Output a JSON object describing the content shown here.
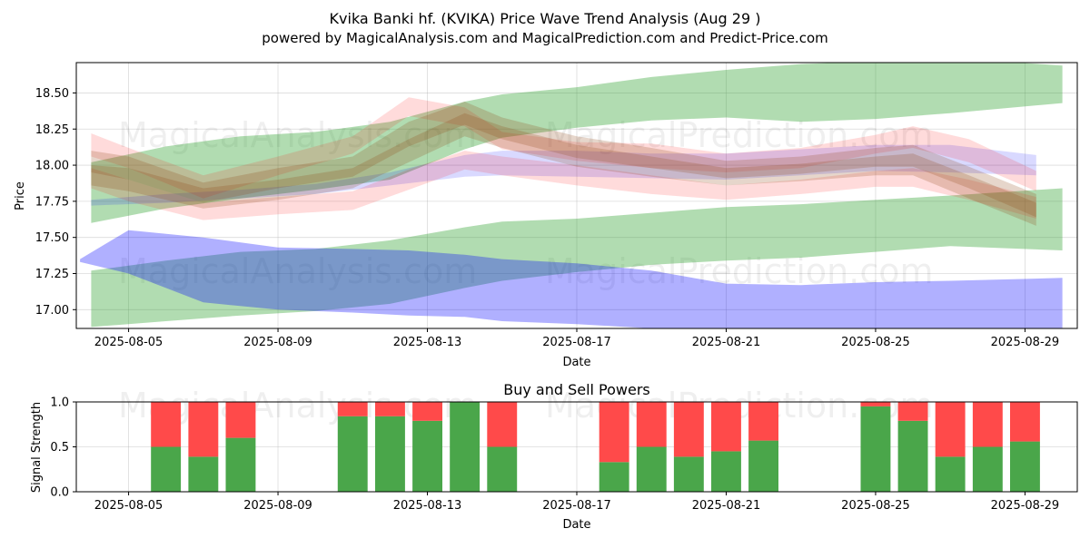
{
  "chart_data": [
    {
      "type": "area",
      "title_line1": "Kvika Banki hf. (KVIKA) Price Wave Trend Analysis (Aug 29 )",
      "title_line2": "powered by MagicalAnalysis.com and MagicalPrediction.com and Predict-Price.com",
      "xlabel": "Date",
      "ylabel": "Price",
      "x_ticks": [
        "2025-08-05",
        "2025-08-09",
        "2025-08-13",
        "2025-08-17",
        "2025-08-21",
        "2025-08-25",
        "2025-08-29"
      ],
      "y_ticks": [
        "17.00",
        "17.25",
        "17.50",
        "17.75",
        "18.00",
        "18.25",
        "18.50"
      ],
      "ylim": [
        16.87,
        18.71
      ],
      "xlim_days": [
        3.6,
        30.4
      ],
      "grid": true,
      "watermarks": [
        "MagicalAnalysis.com",
        "MagicalPrediction.com",
        "MagicalAnalysis.com",
        "MagicalPrediction.com"
      ],
      "bands": [
        {
          "name": "green-upper",
          "color": "#2ca02c",
          "opacity": 0.37,
          "x": [
            4,
            6,
            8,
            10,
            12,
            14,
            15,
            17,
            19,
            21,
            23,
            25,
            27,
            30
          ],
          "upper": [
            18.02,
            18.13,
            18.2,
            18.23,
            18.3,
            18.44,
            18.49,
            18.54,
            18.61,
            18.66,
            18.7,
            18.72,
            18.74,
            18.69
          ],
          "lower": [
            17.6,
            17.7,
            17.77,
            17.83,
            17.9,
            18.11,
            18.19,
            18.26,
            18.31,
            18.33,
            18.3,
            18.32,
            18.36,
            18.43
          ]
        },
        {
          "name": "green-lower",
          "color": "#2ca02c",
          "opacity": 0.37,
          "x": [
            4,
            6,
            8,
            10,
            12,
            14,
            15,
            17,
            19,
            21,
            23,
            25,
            27,
            30
          ],
          "upper": [
            17.27,
            17.34,
            17.4,
            17.42,
            17.48,
            17.57,
            17.61,
            17.63,
            17.67,
            17.71,
            17.73,
            17.76,
            17.79,
            17.84
          ],
          "lower": [
            16.88,
            16.92,
            16.96,
            16.99,
            17.04,
            17.15,
            17.2,
            17.26,
            17.31,
            17.34,
            17.36,
            17.4,
            17.44,
            17.41
          ]
        },
        {
          "name": "blue-lower",
          "color": "#0000ff",
          "opacity": 0.31,
          "x": [
            3.7,
            5,
            7,
            9,
            11,
            12.5,
            14,
            15,
            17,
            19,
            21,
            23,
            25,
            27,
            30
          ],
          "upper": [
            17.35,
            17.55,
            17.5,
            17.43,
            17.42,
            17.41,
            17.38,
            17.35,
            17.32,
            17.27,
            17.18,
            17.17,
            17.19,
            17.2,
            17.22
          ],
          "lower": [
            17.33,
            17.25,
            17.05,
            17.0,
            16.98,
            16.96,
            16.95,
            16.92,
            16.9,
            16.87,
            16.84,
            16.82,
            16.82,
            16.82,
            16.82
          ]
        },
        {
          "name": "blue-upper",
          "color": "#0000ff",
          "opacity": 0.15,
          "x": [
            4,
            6,
            8,
            10,
            12,
            14,
            15,
            17,
            19,
            21,
            23,
            25,
            27,
            29.3
          ],
          "upper": [
            17.76,
            17.8,
            17.83,
            17.87,
            17.95,
            18.07,
            18.1,
            18.1,
            18.08,
            18.08,
            18.11,
            18.14,
            18.14,
            18.07
          ],
          "lower": [
            17.72,
            17.74,
            17.77,
            17.8,
            17.86,
            17.92,
            17.93,
            17.92,
            17.91,
            17.9,
            17.93,
            17.96,
            17.95,
            17.93
          ]
        },
        {
          "name": "red-upper",
          "color": "#ff0000",
          "opacity": 0.14,
          "x": [
            4,
            5,
            7,
            9,
            11,
            12.5,
            14,
            15,
            17,
            19,
            21,
            23,
            25,
            26,
            27.5,
            29.3
          ],
          "upper": [
            18.22,
            18.12,
            17.93,
            18.06,
            18.2,
            18.47,
            18.4,
            18.23,
            18.16,
            18.15,
            18.08,
            18.12,
            18.21,
            18.27,
            18.18,
            17.96
          ],
          "lower": [
            18.06,
            17.98,
            17.77,
            17.93,
            18.08,
            18.34,
            18.27,
            18.11,
            18.03,
            17.98,
            17.95,
            17.98,
            18.08,
            18.12,
            18.02,
            17.82
          ]
        },
        {
          "name": "red-lower",
          "color": "#ff0000",
          "opacity": 0.14,
          "x": [
            4,
            5,
            7,
            9,
            11,
            12.5,
            14,
            15,
            17,
            19,
            21,
            23,
            25,
            26,
            27.5,
            29.3
          ],
          "upper": [
            17.98,
            17.9,
            17.74,
            17.78,
            17.82,
            17.97,
            18.1,
            18.06,
            18.0,
            17.93,
            17.86,
            17.9,
            17.96,
            17.98,
            17.9,
            17.78
          ],
          "lower": [
            17.84,
            17.75,
            17.62,
            17.66,
            17.69,
            17.83,
            17.97,
            17.93,
            17.86,
            17.8,
            17.76,
            17.8,
            17.85,
            17.85,
            17.76,
            17.63
          ]
        },
        {
          "name": "brown-upper",
          "color": "#8b4513",
          "opacity": 0.22,
          "x": [
            4,
            5,
            7,
            9,
            11,
            12.5,
            14,
            15,
            17,
            19,
            21,
            23,
            25,
            26,
            27.5,
            29.3
          ],
          "upper": [
            18.1,
            18.06,
            17.88,
            17.98,
            18.06,
            18.3,
            18.44,
            18.33,
            18.2,
            18.12,
            18.03,
            18.06,
            18.12,
            18.14,
            17.99,
            17.8
          ],
          "lower": [
            17.95,
            17.9,
            17.74,
            17.84,
            17.92,
            18.13,
            18.28,
            18.18,
            18.05,
            17.98,
            17.91,
            17.94,
            17.99,
            17.99,
            17.84,
            17.64
          ]
        },
        {
          "name": "brown-lower",
          "color": "#8b4513",
          "opacity": 0.22,
          "x": [
            4,
            5,
            7,
            9,
            11,
            12.5,
            14,
            15,
            17,
            19,
            21,
            23,
            25,
            26,
            27.5,
            29.3
          ],
          "upper": [
            18.0,
            17.98,
            17.84,
            17.9,
            17.98,
            18.18,
            18.36,
            18.27,
            18.14,
            18.06,
            17.98,
            18.01,
            18.06,
            18.08,
            17.93,
            17.74
          ],
          "lower": [
            17.86,
            17.82,
            17.7,
            17.76,
            17.84,
            18.02,
            18.2,
            18.12,
            17.99,
            17.92,
            17.86,
            17.89,
            17.93,
            17.93,
            17.77,
            17.58
          ]
        }
      ]
    },
    {
      "type": "bar",
      "title": "Buy and Sell Powers",
      "xlabel": "Date",
      "ylabel": "Signal Strength",
      "x_ticks": [
        "2025-08-05",
        "2025-08-09",
        "2025-08-13",
        "2025-08-17",
        "2025-08-21",
        "2025-08-25",
        "2025-08-29"
      ],
      "y_ticks": [
        "0.0",
        "0.5",
        "1.0"
      ],
      "ylim": [
        0,
        1
      ],
      "grid": true,
      "buy_color": "#4aa64a",
      "sell_color": "#ff4a4a",
      "bars": [
        {
          "day": 6,
          "buy": 0.5
        },
        {
          "day": 7,
          "buy": 0.39
        },
        {
          "day": 8,
          "buy": 0.6
        },
        {
          "day": 11,
          "buy": 0.84
        },
        {
          "day": 12,
          "buy": 0.84
        },
        {
          "day": 13,
          "buy": 0.79
        },
        {
          "day": 14,
          "buy": 1.0
        },
        {
          "day": 15,
          "buy": 0.5
        },
        {
          "day": 18,
          "buy": 0.33
        },
        {
          "day": 19,
          "buy": 0.5
        },
        {
          "day": 20,
          "buy": 0.39
        },
        {
          "day": 21,
          "buy": 0.45
        },
        {
          "day": 22,
          "buy": 0.57
        },
        {
          "day": 25,
          "buy": 0.95
        },
        {
          "day": 26,
          "buy": 0.79
        },
        {
          "day": 27,
          "buy": 0.39
        },
        {
          "day": 28,
          "buy": 0.5
        },
        {
          "day": 29,
          "buy": 0.56
        }
      ]
    }
  ]
}
